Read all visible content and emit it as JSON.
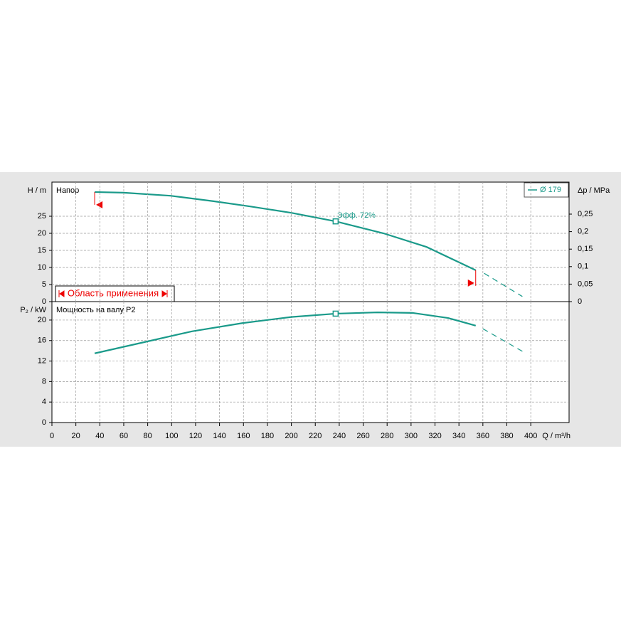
{
  "chart_data": [
    {
      "type": "line",
      "title": "Напор",
      "ylabel": "H / m",
      "y2label": "Δp / MPa",
      "xlim": [
        0,
        432
      ],
      "ylim": [
        0,
        35
      ],
      "yticks": [
        0,
        5,
        10,
        15,
        20,
        25
      ],
      "y2lim": [
        0,
        0.3415
      ],
      "y2ticks": [
        0,
        {
          "value": 0.05,
          "label": "0,05"
        },
        {
          "value": 0.1,
          "label": "0,1"
        },
        {
          "value": 0.15,
          "label": "0,15"
        },
        {
          "value": 0.2,
          "label": "0,2"
        },
        {
          "value": 0.25,
          "label": "0,25"
        }
      ],
      "series": [
        {
          "name": "Ø 179",
          "color": "#1a9a8a",
          "x": [
            35.7,
            60,
            99,
            135,
            165,
            200,
            237,
            277,
            313,
            354
          ],
          "values": [
            32.1,
            31.9,
            31,
            29.4,
            27.9,
            26,
            23.5,
            20,
            16,
            9.2
          ],
          "extension": {
            "x": [
              361,
              393
            ],
            "values": [
              8.3,
              1.5
            ]
          }
        }
      ],
      "operating_point": {
        "x": 237,
        "value": 23.5,
        "label": "Эфф.  72%"
      },
      "application_range": {
        "label": "Область применения",
        "x": [
          35.7,
          354
        ]
      },
      "grid": true,
      "legend": "top-right"
    },
    {
      "type": "line",
      "title": "Мощность на валу P2",
      "ylabel": "P₂ / kW",
      "xlabel": "Q / m³/h",
      "xlim": [
        0,
        432
      ],
      "xticks": [
        0,
        20,
        40,
        60,
        80,
        100,
        120,
        140,
        160,
        180,
        200,
        220,
        240,
        260,
        280,
        300,
        320,
        340,
        360,
        380,
        400
      ],
      "ylim": [
        0,
        23.6
      ],
      "yticks": [
        0,
        4,
        8,
        12,
        16,
        20
      ],
      "series": [
        {
          "color": "#1a9a8a",
          "x": [
            35.7,
            75.5,
            117,
            159,
            200,
            237,
            272,
            301,
            331,
            354
          ],
          "values": [
            13.5,
            15.6,
            17.8,
            19.4,
            20.6,
            21.25,
            21.5,
            21.4,
            20.4,
            18.9
          ],
          "extension": {
            "x": [
              360,
              393
            ],
            "values": [
              18.3,
              13.9
            ]
          }
        }
      ],
      "operating_point": {
        "x": 237,
        "value": 21.25
      },
      "grid": true
    }
  ]
}
